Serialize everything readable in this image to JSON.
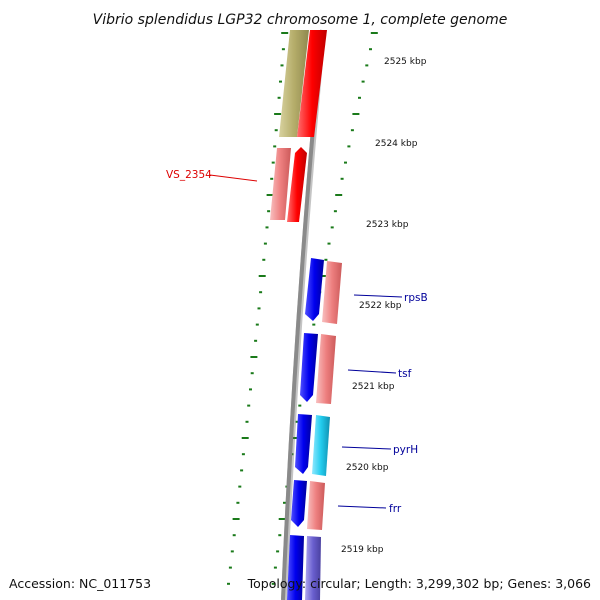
{
  "title": "Vibrio splendidus LGP32 chromosome 1, complete genome",
  "accession": "Accession: NC_011753",
  "topology": "Topology: circular; Length: 3,299,302 bp; Genes: 3,066",
  "kbp_labels": [
    "2525 kbp",
    "2524 kbp",
    "2523 kbp",
    "2522 kbp",
    "2521 kbp",
    "2520 kbp",
    "2519 kbp"
  ],
  "genes": [
    {
      "name": "VS_2354",
      "color": "#dd0000"
    },
    {
      "name": "rpsB",
      "color": "#00009a"
    },
    {
      "name": "tsf",
      "color": "#00009a"
    },
    {
      "name": "pyrH",
      "color": "#00009a"
    },
    {
      "name": "frr",
      "color": "#00009a"
    }
  ],
  "colors": {
    "backbone": "#8a8a8a",
    "tick": "#1a7a1a",
    "olive": "#b5ad6a",
    "red": "#ff0000",
    "salmon": "#ee8080",
    "blue": "#0000ee",
    "cyan": "#22ccee",
    "purple": "#6a5fcf"
  }
}
